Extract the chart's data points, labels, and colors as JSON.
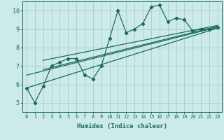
{
  "title": "",
  "xlabel": "Humidex (Indice chaleur)",
  "ylabel": "",
  "bg_color": "#cceaea",
  "line_color": "#1a6b5a",
  "grid_color": "#aacccc",
  "xlim": [
    -0.5,
    23.5
  ],
  "ylim": [
    4.5,
    10.5
  ],
  "xticks": [
    0,
    1,
    2,
    3,
    4,
    5,
    6,
    7,
    8,
    9,
    10,
    11,
    12,
    13,
    14,
    15,
    16,
    17,
    18,
    19,
    20,
    21,
    22,
    23
  ],
  "yticks": [
    5,
    6,
    7,
    8,
    9,
    10
  ],
  "series1_x": [
    0,
    1,
    2,
    3,
    4,
    5,
    6,
    7,
    8,
    9,
    10,
    11,
    12,
    13,
    14,
    15,
    16,
    17,
    18,
    19,
    20,
    21,
    22,
    23
  ],
  "series1_y": [
    5.8,
    5.0,
    5.9,
    7.0,
    7.2,
    7.4,
    7.4,
    6.5,
    6.3,
    7.0,
    8.5,
    10.0,
    8.8,
    9.0,
    9.3,
    10.2,
    10.3,
    9.4,
    9.6,
    9.5,
    8.9,
    9.0,
    9.0,
    9.1
  ],
  "trend1_x": [
    0,
    23
  ],
  "trend1_y": [
    5.8,
    9.05
  ],
  "trend2_x": [
    0,
    23
  ],
  "trend2_y": [
    6.5,
    9.1
  ],
  "trend3_x": [
    2,
    23
  ],
  "trend3_y": [
    6.8,
    9.15
  ],
  "trend4_x": [
    2,
    23
  ],
  "trend4_y": [
    7.3,
    9.2
  ]
}
